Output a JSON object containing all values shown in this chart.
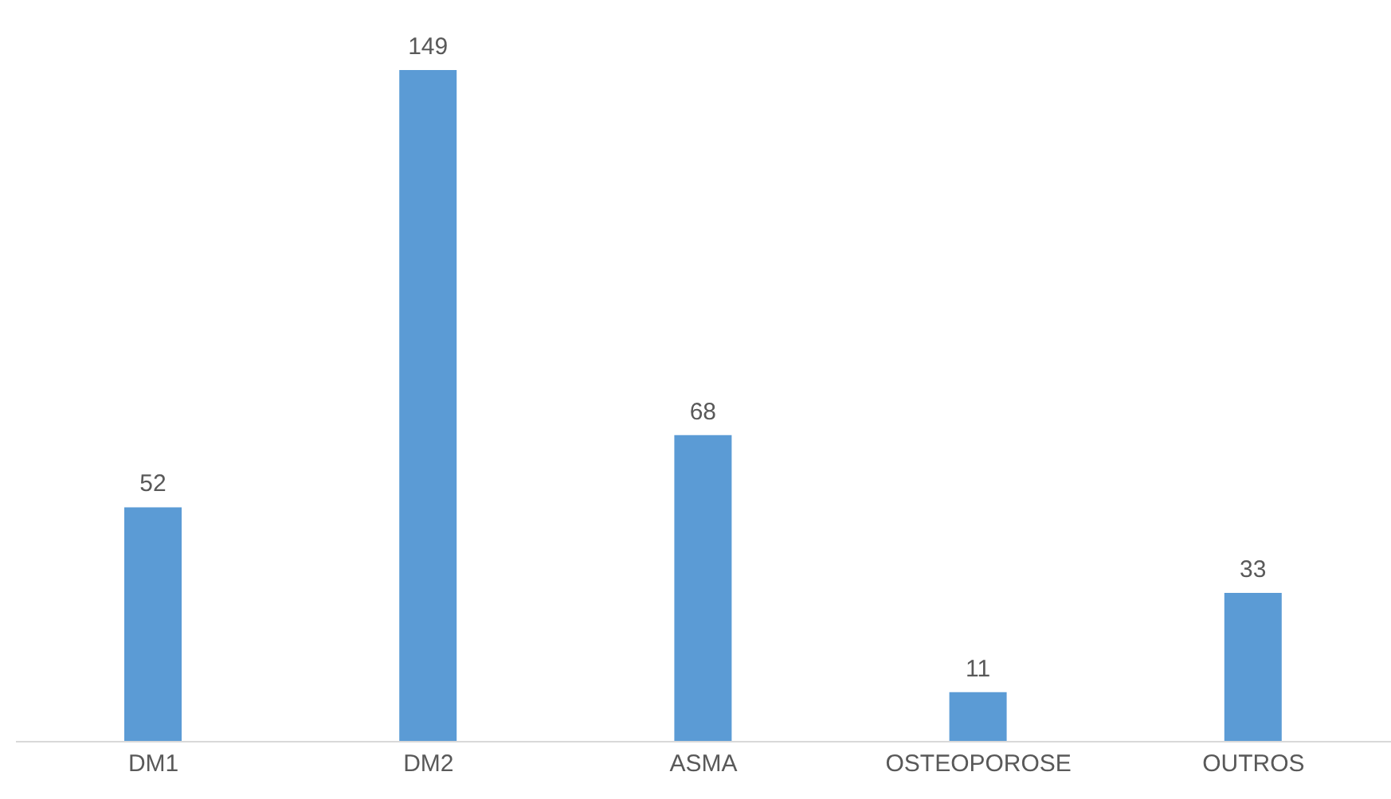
{
  "chart_data": {
    "type": "bar",
    "categories": [
      "DM1",
      "DM2",
      "ASMA",
      "OSTEOPOROSE",
      "OUTROS"
    ],
    "values": [
      52,
      149,
      68,
      11,
      33
    ],
    "color": "#5b9bd5",
    "data_labels": true
  }
}
